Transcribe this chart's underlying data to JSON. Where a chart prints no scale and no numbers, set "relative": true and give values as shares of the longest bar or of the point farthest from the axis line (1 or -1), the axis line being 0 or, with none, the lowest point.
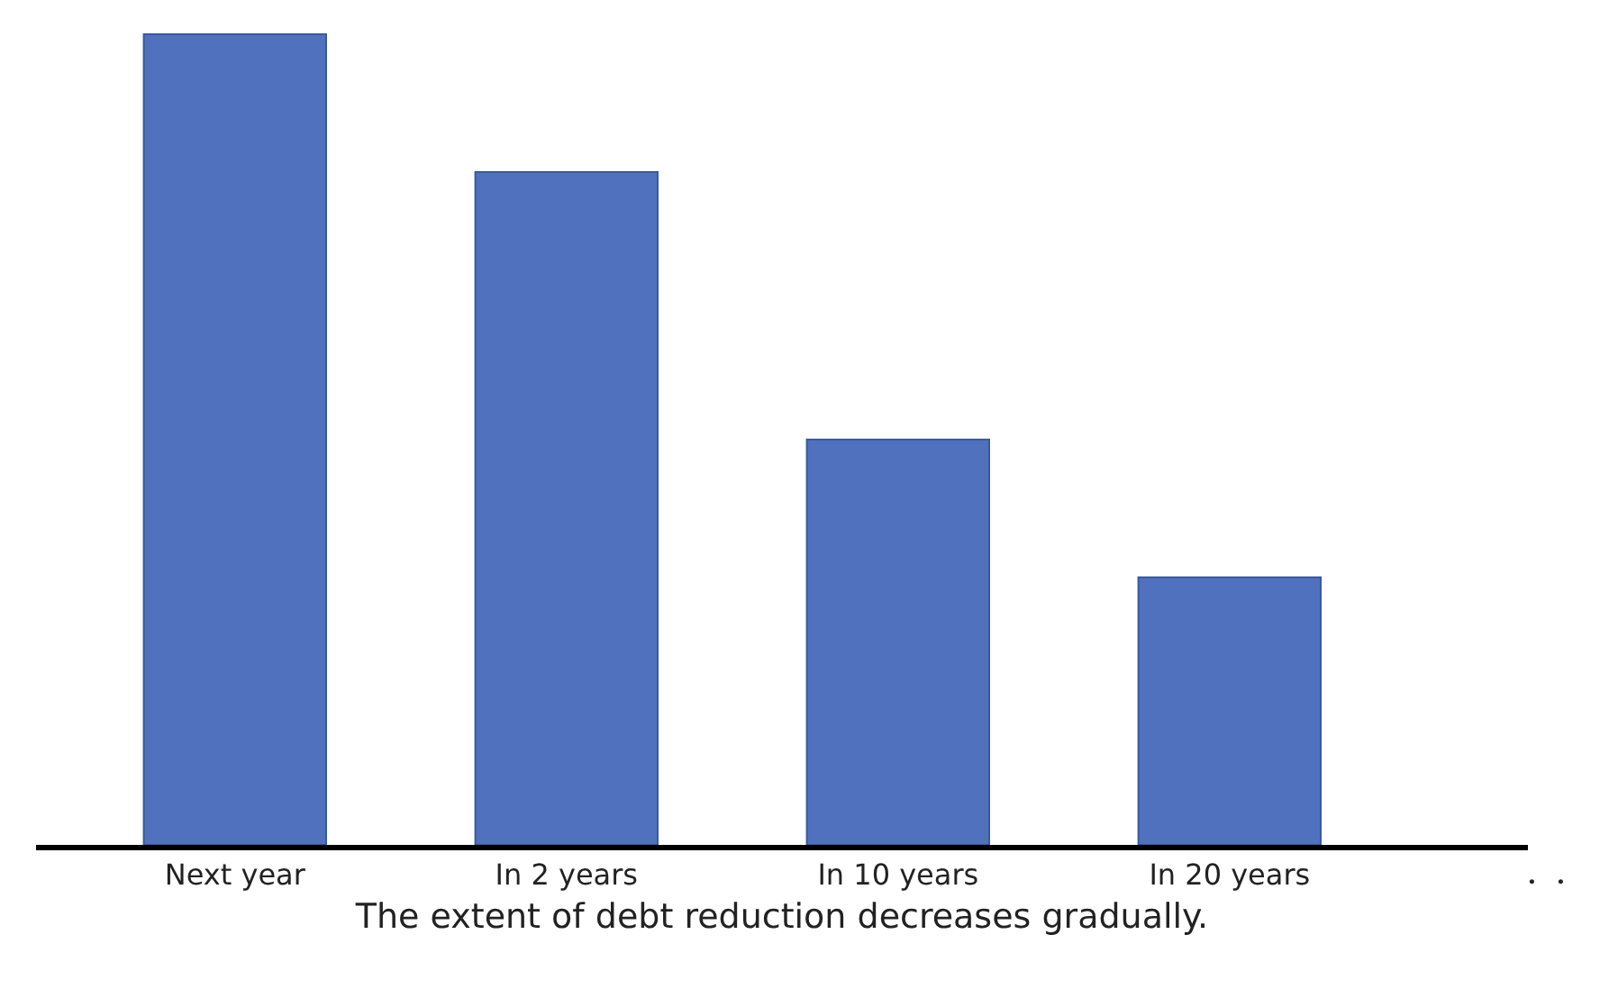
{
  "chart_data": {
    "type": "bar",
    "relative": true,
    "xlabel": "The extent of debt reduction decreases gradually.",
    "categories": [
      "Next year",
      "In 2 years",
      "In 10 years",
      "In 20 years"
    ],
    "values": [
      1,
      0.83,
      0.5,
      0.33
    ],
    "color": "#4f71be",
    "annotations": [
      "・・"
    ]
  }
}
